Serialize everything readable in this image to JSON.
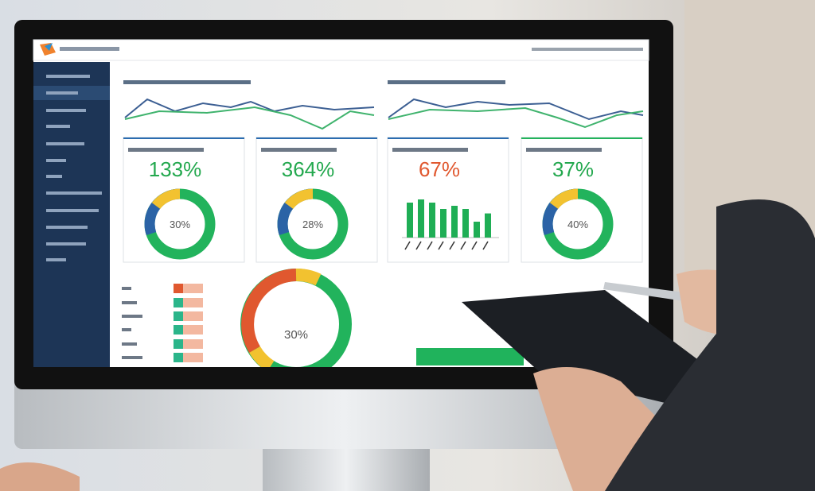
{
  "screen": {
    "cards": [
      {
        "value": "133%",
        "center": "30%"
      },
      {
        "value": "364%",
        "center": "28%"
      },
      {
        "value": "67%",
        "bars": [
          0.55,
          0.6,
          0.55,
          0.45,
          0.5,
          0.45,
          0.25,
          0.38
        ]
      },
      {
        "value": "37%",
        "center": "40%"
      }
    ],
    "big_donut_center": "30%"
  }
}
